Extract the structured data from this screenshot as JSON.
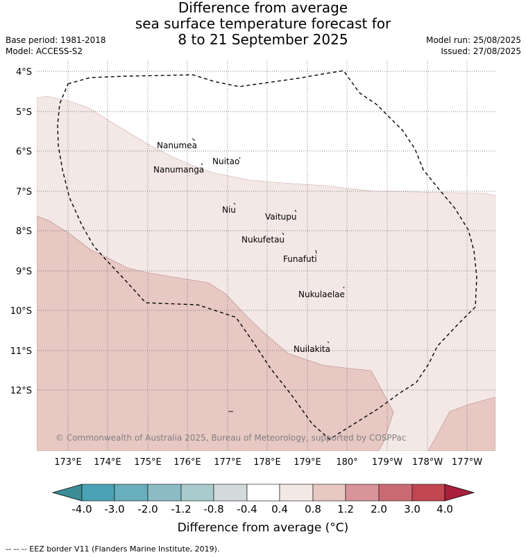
{
  "title": {
    "line1": "Difference from average",
    "line2": "sea surface temperature forecast for",
    "line3": "8 to 21 September 2025"
  },
  "meta": {
    "base_period": "Base period: 1981-2018",
    "model": "Model: ACCESS-S2",
    "model_run": "Model run: 25/08/2025",
    "issued": "Issued: 27/08/2025"
  },
  "map": {
    "lon_labels": [
      "173°E",
      "174°E",
      "175°E",
      "176°E",
      "177°E",
      "178°E",
      "179°E",
      "180°",
      "179°W",
      "178°W",
      "177°W"
    ],
    "lat_labels": [
      "4°S",
      "5°S",
      "6°S",
      "7°S",
      "8°S",
      "9°S",
      "10°S",
      "11°S",
      "12°S"
    ],
    "copyright": "© Commonwealth of Australia 2025, Bureau of Meteorology, supported by COSPPac",
    "islands": [
      {
        "name": "Nanumea"
      },
      {
        "name": "Nuitao"
      },
      {
        "name": "Nanumanga"
      },
      {
        "name": "Niu"
      },
      {
        "name": "Vaitupu"
      },
      {
        "name": "Nukufetau"
      },
      {
        "name": "Funafuti"
      },
      {
        "name": "Nukulaelae"
      },
      {
        "name": "Nuilakita"
      }
    ],
    "colors": {
      "anomaly_0_4_to_0_8": "#f4e8e6",
      "anomaly_0_8_to_1_2": "#e7c8c3"
    }
  },
  "colorbar": {
    "tick_labels": [
      "-4.0",
      "-3.0",
      "-2.0",
      "-1.2",
      "-0.8",
      "-0.4",
      "0.4",
      "0.8",
      "1.2",
      "2.0",
      "3.0",
      "4.0"
    ],
    "colors": [
      "#3c8c96",
      "#4aa2b4",
      "#69aebc",
      "#8bbcc5",
      "#a9cbcd",
      "#d2dadb",
      "#ffffff",
      "#f4e8e6",
      "#e7c8c3",
      "#d8949a",
      "#cc6a74",
      "#c24652",
      "#a8203d"
    ],
    "label": "Difference from average (°C)"
  },
  "footer": "--  --  -- EEZ border V11 (Flanders Marine Institute, 2019)."
}
